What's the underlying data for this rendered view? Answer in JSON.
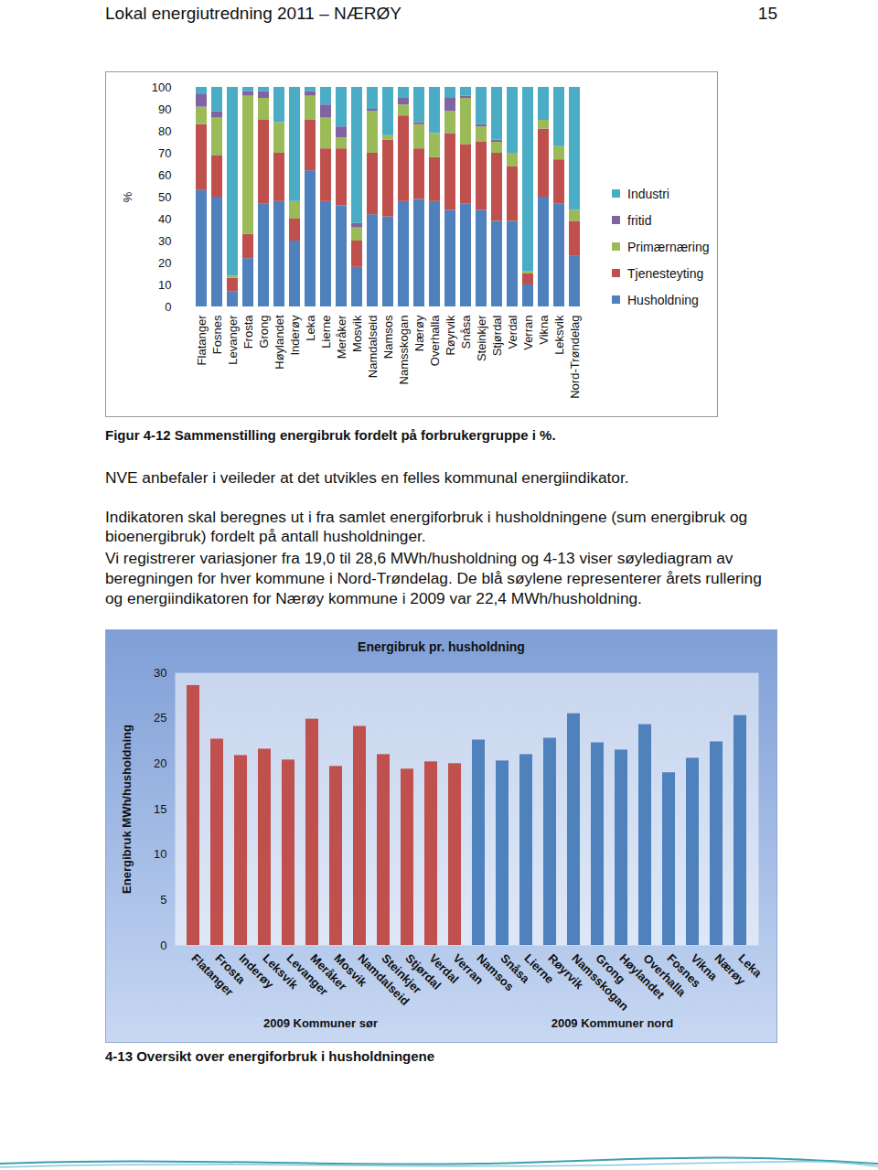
{
  "header": {
    "title": "Lokal energiutredning 2011 – NÆRØY",
    "page": "15"
  },
  "chart_data": [
    {
      "type": "bar",
      "stacked": true,
      "legend": "right",
      "grid": false,
      "caption": "Figur 4-12 Sammenstilling energibruk fordelt på forbrukergruppe i %.",
      "y_label": "%",
      "categories": [
        "Flatanger",
        "Fosnes",
        "Levanger",
        "Frosta",
        "Grong",
        "Høylandet",
        "Inderøy",
        "Leka",
        "Lierne",
        "Meråker",
        "Mosvik",
        "Namdalseid",
        "Namsos",
        "Namsskogan",
        "Nærøy",
        "Overhalla",
        "Røyrvik",
        "Snåsa",
        "Steinkjer",
        "Stjørdal",
        "Verdal",
        "Verran",
        "Vikna",
        "Leksvik",
        "Nord-Trøndelag"
      ],
      "series": [
        {
          "name": "Husholdning",
          "color": "#4f81bd",
          "values": [
            53,
            50,
            7,
            22,
            47,
            48,
            30,
            62,
            48,
            46,
            18,
            42,
            41,
            48,
            49,
            48,
            44,
            47,
            44,
            39,
            39,
            10,
            50,
            47,
            23
          ]
        },
        {
          "name": "Tjenesteyting",
          "color": "#c0504d",
          "values": [
            30,
            19,
            6,
            11,
            38,
            22,
            10,
            23,
            24,
            26,
            12,
            28,
            35,
            39,
            23,
            20,
            35,
            27,
            31,
            31,
            25,
            5,
            31,
            20,
            16
          ]
        },
        {
          "name": "Primærnæring",
          "color": "#9bbb59",
          "values": [
            8,
            17,
            1,
            63,
            10,
            14,
            8,
            11,
            14,
            5,
            6,
            19,
            2,
            5,
            11,
            11,
            10,
            21,
            7,
            5,
            6,
            1,
            4,
            6,
            5
          ]
        },
        {
          "name": "fritid",
          "color": "#8064a2",
          "values": [
            6,
            3,
            0,
            2,
            3,
            0,
            0,
            2,
            6,
            5,
            2,
            1,
            0,
            3,
            1,
            0,
            6,
            1,
            1,
            1,
            0,
            0,
            0,
            0,
            0
          ]
        },
        {
          "name": "Industri",
          "color": "#4bacc6",
          "values": [
            3,
            11,
            86,
            2,
            2,
            16,
            52,
            2,
            8,
            18,
            62,
            10,
            22,
            5,
            16,
            21,
            5,
            4,
            17,
            24,
            30,
            84,
            15,
            27,
            56
          ]
        }
      ],
      "ylim": [
        0,
        100
      ],
      "yticks": [
        0,
        10,
        20,
        30,
        40,
        50,
        60,
        70,
        80,
        90,
        100
      ]
    },
    {
      "type": "bar",
      "legend": "bottom",
      "grid": false,
      "title": "Energibruk pr. husholdning",
      "caption": "4-13 Oversikt over energiforbruk i husholdningene",
      "y_label": "Energibruk MWh/husholdning",
      "categories": [
        "Flatanger",
        "Frosta",
        "Inderøy",
        "Leksvik",
        "Levanger",
        "Meråker",
        "Mosvik",
        "Namdalseid",
        "Steinkjer",
        "Stjørdal",
        "Verdal",
        "Verran",
        "Namsos",
        "Snåsa",
        "Lierne",
        "Røyrvik",
        "Namsskogan",
        "Grong",
        "Høylandet",
        "Overhalla",
        "Fosnes",
        "Vikna",
        "Nærøy",
        "Leka"
      ],
      "series": [
        {
          "name": "2009 Kommuner sør",
          "color": "#c0504d",
          "values": [
            28.6,
            22.7,
            20.9,
            21.6,
            20.4,
            24.9,
            19.7,
            24.1,
            21.0,
            19.4,
            20.2,
            20.0,
            null,
            null,
            null,
            null,
            null,
            null,
            null,
            null,
            null,
            null,
            null,
            null
          ]
        },
        {
          "name": "2009 Kommuner nord",
          "color": "#4f81bd",
          "values": [
            null,
            null,
            null,
            null,
            null,
            null,
            null,
            null,
            null,
            null,
            null,
            null,
            22.6,
            20.3,
            21.0,
            22.8,
            25.5,
            22.3,
            21.5,
            24.3,
            19.0,
            20.6,
            22.4,
            25.3
          ]
        }
      ],
      "ylim": [
        0,
        30
      ],
      "yticks": [
        0,
        5,
        10,
        15,
        20,
        25,
        30
      ]
    }
  ],
  "text": {
    "paragraphs": [
      "NVE anbefaler i veileder at det utvikles en felles kommunal energiindikator.",
      "Indikatoren skal beregnes ut i fra samlet energiforbruk i husholdningene (sum energibruk og bioenergibruk) fordelt på antall husholdninger.",
      "Vi registrerer variasjoner fra 19,0 til 28,6 MWh/husholdning og 4-13 viser søylediagram av beregningen for hver kommune i Nord-Trøndelag. De blå søylene representerer årets rullering og energiindikatoren for Nærøy kommune i 2009 var 22,4 MWh/husholdning."
    ]
  }
}
